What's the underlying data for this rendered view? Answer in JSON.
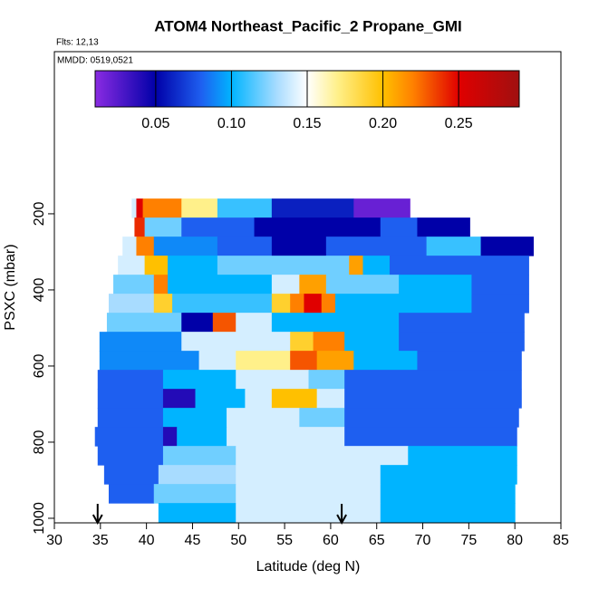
{
  "chart_data": {
    "type": "curtain",
    "title": "ATOM4 Northeast_Pacific_2 Propane_GMI",
    "annotations": [
      "Flts: 12,13",
      "MMDD: 0519,0521"
    ],
    "x_label": "Latitude (deg N)",
    "y_label": "PSXC (mbar)",
    "xlim": [
      30,
      85
    ],
    "xticks": [
      30,
      35,
      40,
      45,
      50,
      55,
      60,
      65,
      70,
      75,
      80,
      85
    ],
    "ylim": [
      1012,
      -226
    ],
    "yticks": [
      200,
      400,
      600,
      800,
      1000
    ],
    "arrows_lat": [
      34.7,
      61.2
    ],
    "colorbar": {
      "lim": [
        0.01,
        0.29
      ],
      "ticks": [
        0.05,
        {
          "value": 0.1,
          "label": "0.10"
        },
        0.15,
        {
          "value": 0.2,
          "label": "0.20"
        },
        0.25
      ],
      "stops": [
        0.01,
        0.05,
        0.08,
        0.1,
        0.13,
        0.15,
        0.17,
        0.2,
        0.22,
        0.25,
        0.29
      ],
      "colors": [
        "#8a2be2",
        "#0000a8",
        "#1e5ff0",
        "#00b4ff",
        "#a8dcff",
        "#ffffff",
        "#fff08a",
        "#ffc000",
        "#ff8000",
        "#e00000",
        "#a01010"
      ]
    },
    "rows": [
      {
        "p": [
          160,
          210
        ],
        "lat": [
          38.4,
          38.9,
          39.6,
          43.8,
          47.7,
          53.6,
          62.5,
          68.6
        ],
        "values": [
          0.14,
          0.25,
          0.22,
          0.17,
          0.11,
          0.06,
          0.02
        ]
      },
      {
        "p": [
          210,
          260
        ],
        "lat": [
          38.7,
          39.8,
          43.8,
          51.7,
          65.4,
          69.4,
          75.1
        ],
        "values": [
          0.24,
          0.12,
          0.08,
          0.05,
          0.08,
          0.05
        ]
      },
      {
        "p": [
          260,
          310
        ],
        "lat": [
          37.4,
          38.9,
          40.8,
          47.7,
          53.6,
          59.5,
          70.4,
          76.3,
          82.0
        ],
        "values": [
          0.14,
          0.22,
          0.09,
          0.08,
          0.05,
          0.08,
          0.11,
          0.05
        ]
      },
      {
        "p": [
          310,
          360
        ],
        "lat": [
          36.9,
          39.8,
          42.3,
          47.7,
          62.0,
          63.5,
          66.4,
          81.5
        ],
        "values": [
          0.14,
          0.2,
          0.1,
          0.12,
          0.21,
          0.1,
          0.08
        ]
      },
      {
        "p": [
          360,
          410
        ],
        "lat": [
          36.4,
          40.8,
          42.3,
          53.6,
          56.6,
          59.5,
          67.4,
          75.3,
          81.5
        ],
        "values": [
          0.12,
          0.22,
          0.1,
          0.14,
          0.21,
          0.12,
          0.1,
          0.08
        ]
      },
      {
        "p": [
          410,
          460
        ],
        "lat": [
          35.9,
          40.8,
          42.8,
          53.6,
          55.6,
          57.1,
          59.0,
          60.5,
          75.3,
          81.5
        ],
        "values": [
          0.13,
          0.19,
          0.11,
          0.19,
          0.22,
          0.25,
          0.22,
          0.1,
          0.08
        ]
      },
      {
        "p": [
          460,
          510
        ],
        "lat": [
          35.7,
          43.8,
          47.2,
          49.7,
          53.6,
          67.4,
          81.0
        ],
        "values": [
          0.12,
          0.05,
          0.23,
          0.14,
          0.1,
          0.08
        ]
      },
      {
        "p": [
          510,
          560
        ],
        "lat": [
          34.9,
          43.8,
          55.6,
          58.1,
          61.5,
          67.4,
          81.0
        ],
        "values": [
          0.09,
          0.14,
          0.19,
          0.22,
          0.1,
          0.08
        ]
      },
      {
        "p": [
          560,
          610
        ],
        "lat": [
          34.9,
          45.7,
          49.7,
          55.6,
          58.5,
          62.5,
          69.4,
          80.7
        ],
        "values": [
          0.09,
          0.14,
          0.17,
          0.23,
          0.21,
          0.1,
          0.08
        ]
      },
      {
        "p": [
          610,
          660
        ],
        "lat": [
          34.7,
          41.8,
          49.7,
          57.6,
          61.5,
          80.7
        ],
        "values": [
          0.08,
          0.1,
          0.14,
          0.12,
          0.08
        ]
      },
      {
        "p": [
          660,
          710
        ],
        "lat": [
          34.7,
          41.8,
          45.3,
          50.7,
          53.6,
          58.5,
          61.5,
          80.7
        ],
        "values": [
          0.08,
          0.04,
          0.1,
          0.14,
          0.2,
          0.14,
          0.08
        ]
      },
      {
        "p": [
          710,
          760
        ],
        "lat": [
          34.7,
          41.8,
          48.7,
          56.6,
          61.5,
          80.4
        ],
        "values": [
          0.08,
          0.1,
          0.14,
          0.12,
          0.08
        ]
      },
      {
        "p": [
          760,
          810
        ],
        "lat": [
          34.4,
          41.8,
          43.3,
          48.7,
          61.5,
          80.2
        ],
        "values": [
          0.08,
          0.04,
          0.1,
          0.14,
          0.08
        ]
      },
      {
        "p": [
          810,
          860
        ],
        "lat": [
          34.7,
          41.8,
          49.7,
          68.4,
          80.2
        ],
        "values": [
          0.08,
          0.12,
          0.14,
          0.1
        ]
      },
      {
        "p": [
          860,
          910
        ],
        "lat": [
          35.4,
          41.3,
          49.7,
          65.4,
          80.2
        ],
        "values": [
          0.08,
          0.13,
          0.14,
          0.1
        ]
      },
      {
        "p": [
          910,
          960
        ],
        "lat": [
          35.9,
          40.8,
          49.7,
          65.4,
          80.0
        ],
        "values": [
          0.08,
          0.12,
          0.14,
          0.1
        ]
      },
      {
        "p": [
          960,
          1010
        ],
        "lat": [
          41.3,
          49.7,
          65.4,
          80.0
        ],
        "values": [
          0.1,
          0.14,
          0.1
        ]
      }
    ]
  }
}
